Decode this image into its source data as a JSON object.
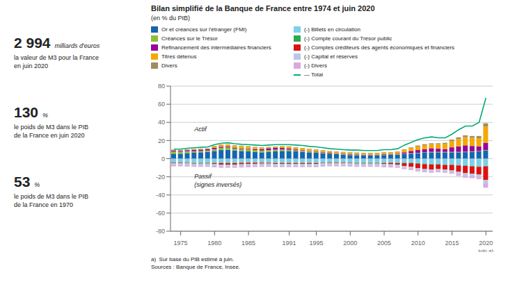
{
  "chart_data": {
    "type": "bar",
    "title": "Bilan simplifié de la Banque de France entre 1974 et juin 2020",
    "subtitle": "(en % du PIB)",
    "stacked": true,
    "grid": true,
    "legend": "top",
    "x": [
      1974,
      1975,
      1976,
      1977,
      1978,
      1979,
      1980,
      1981,
      1982,
      1983,
      1984,
      1985,
      1986,
      1987,
      1988,
      1989,
      1990,
      1991,
      1992,
      1993,
      1994,
      1995,
      1996,
      1997,
      1998,
      1999,
      2000,
      2001,
      2002,
      2003,
      2004,
      2005,
      2006,
      2007,
      2008,
      2009,
      2010,
      2011,
      2012,
      2013,
      2014,
      2015,
      2016,
      2017,
      2018,
      2019,
      2020
    ],
    "xlim": [
      1973.5,
      2021.0
    ],
    "xticks": [
      1975,
      1980,
      1985,
      1991,
      1995,
      2000,
      2005,
      2010,
      2015,
      2020
    ],
    "ylim": [
      -80,
      80
    ],
    "yticks": [
      -80,
      -60,
      -40,
      -20,
      0,
      20,
      40,
      60,
      80
    ],
    "series": [
      {
        "name": "Or et créances sur l'étranger (FMI)",
        "type": "bar",
        "color": "#1565b0",
        "values": [
          5.5,
          5.5,
          6.2,
          6.5,
          7.0,
          7.5,
          8.5,
          9.5,
          9.8,
          9.0,
          8.5,
          8.0,
          7.5,
          7.0,
          7.5,
          8.0,
          8.5,
          8.5,
          8.0,
          7.5,
          7.0,
          6.5,
          6.0,
          5.5,
          5.0,
          4.5,
          4.0,
          3.8,
          3.5,
          3.5,
          3.5,
          4.0,
          4.2,
          4.5,
          5.0,
          5.5,
          6.0,
          6.5,
          7.0,
          7.0,
          7.0,
          7.0,
          7.0,
          7.2,
          7.5,
          8.0,
          9.0
        ]
      },
      {
        "name": "Créances sur le Trésor",
        "type": "bar",
        "color": "#8fbe3a",
        "values": [
          2.5,
          2.2,
          2.0,
          1.8,
          1.5,
          1.5,
          2.0,
          2.5,
          2.5,
          2.2,
          2.0,
          2.0,
          2.0,
          2.0,
          2.0,
          2.0,
          1.8,
          1.5,
          1.2,
          1.0,
          0.8,
          0.8,
          0.8,
          0.5,
          0.5,
          0.5,
          0.5,
          0.5,
          0.5,
          0.5,
          0.5,
          0.5,
          0.5,
          0.5,
          0.5,
          0.5,
          0.5,
          0.5,
          0.5,
          0.5,
          0.5,
          0.5,
          0.5,
          0.5,
          0.5,
          0.5,
          0.5
        ]
      },
      {
        "name": "Refinancement des intermédiaires financiers",
        "type": "bar",
        "color": "#990099",
        "values": [
          1.0,
          1.0,
          1.2,
          1.5,
          1.5,
          1.5,
          1.5,
          1.2,
          1.0,
          1.0,
          0.8,
          0.8,
          1.0,
          1.5,
          2.0,
          2.0,
          1.5,
          1.2,
          1.0,
          0.8,
          0.5,
          0.5,
          0.5,
          0.5,
          0.5,
          0.5,
          0.5,
          0.5,
          0.5,
          0.5,
          0.5,
          0.5,
          0.5,
          0.5,
          1.5,
          2.5,
          3.0,
          3.5,
          4.0,
          3.5,
          3.0,
          5.0,
          6.0,
          7.0,
          6.0,
          5.0,
          8.0
        ]
      },
      {
        "name": "Titres détenus",
        "type": "bar",
        "color": "#f5a800",
        "values": [
          0.5,
          0.5,
          0.5,
          0.5,
          0.5,
          0.5,
          1.5,
          2.0,
          2.0,
          2.0,
          2.5,
          2.5,
          2.0,
          1.5,
          1.0,
          1.0,
          1.5,
          2.0,
          2.0,
          2.0,
          2.0,
          2.0,
          1.5,
          1.5,
          1.5,
          1.5,
          1.5,
          1.5,
          1.5,
          1.5,
          1.5,
          1.5,
          1.5,
          2.0,
          3.0,
          3.5,
          4.0,
          4.5,
          4.5,
          5.0,
          6.0,
          7.0,
          8.0,
          9.0,
          9.0,
          9.0,
          18.0
        ]
      },
      {
        "name": "Divers",
        "type": "bar",
        "color": "#a08c60",
        "values": [
          0.5,
          0.5,
          0.5,
          0.5,
          0.5,
          0.5,
          0.5,
          0.5,
          0.5,
          0.5,
          0.5,
          0.5,
          0.5,
          0.5,
          0.5,
          0.5,
          0.5,
          0.5,
          0.5,
          0.5,
          0.5,
          0.5,
          0.5,
          0.5,
          0.5,
          0.5,
          0.5,
          0.5,
          0.5,
          0.5,
          0.5,
          0.5,
          0.5,
          0.5,
          0.5,
          0.5,
          1.0,
          1.0,
          1.0,
          1.0,
          1.0,
          1.5,
          2.0,
          2.0,
          2.0,
          2.5,
          3.5
        ]
      },
      {
        "name": "(-) Billets en circulation",
        "type": "bar",
        "color": "#7ecfe8",
        "values": [
          -4.0,
          -4.0,
          -4.2,
          -4.5,
          -4.5,
          -4.5,
          -4.5,
          -4.5,
          -4.5,
          -4.5,
          -4.2,
          -4.0,
          -4.0,
          -4.0,
          -4.2,
          -4.5,
          -4.5,
          -4.5,
          -4.5,
          -4.5,
          -4.5,
          -4.5,
          -4.2,
          -4.0,
          -4.0,
          -4.0,
          -4.2,
          -4.5,
          -4.5,
          -4.5,
          -4.5,
          -4.5,
          -4.2,
          -4.5,
          -4.5,
          -4.5,
          -5.0,
          -5.5,
          -6.0,
          -6.0,
          -6.5,
          -6.5,
          -7.0,
          -7.5,
          -8.0,
          -8.5,
          -8.0
        ]
      },
      {
        "name": "(-) Compte courant du Trésor public",
        "type": "bar",
        "color": "#2aaa50",
        "values": [
          -0.5,
          -0.5,
          -0.5,
          -0.5,
          -0.5,
          -0.5,
          -0.5,
          -0.5,
          -0.5,
          -0.5,
          -0.5,
          -0.5,
          -0.5,
          -0.5,
          -0.5,
          -0.5,
          -0.5,
          -0.5,
          -0.5,
          -0.5,
          -0.5,
          -0.5,
          -0.5,
          -0.5,
          -0.5,
          -0.5,
          -0.5,
          -0.5,
          -0.5,
          -0.5,
          -0.5,
          -0.5,
          -0.5,
          -0.5,
          -0.5,
          -0.5,
          -0.5,
          -0.5,
          -0.5,
          -0.5,
          -0.5,
          -0.5,
          -0.5,
          -0.5,
          -0.5,
          -0.5,
          -0.5
        ]
      },
      {
        "name": "(-) Comptes créditeurs des agents économiques et financiers",
        "type": "bar",
        "color": "#dd1111",
        "values": [
          -0.5,
          -0.5,
          -0.5,
          -0.5,
          -0.5,
          -0.5,
          -1.0,
          -1.5,
          -1.5,
          -1.5,
          -1.5,
          -1.5,
          -1.2,
          -1.0,
          -0.8,
          -0.8,
          -0.8,
          -0.8,
          -0.8,
          -0.8,
          -0.8,
          -0.8,
          -0.5,
          -0.5,
          -0.5,
          -0.5,
          -0.5,
          -0.5,
          -0.5,
          -0.5,
          -0.5,
          -1.0,
          -1.5,
          -1.5,
          -3.0,
          -4.0,
          -5.0,
          -5.5,
          -5.5,
          -5.0,
          -5.0,
          -6.0,
          -7.0,
          -8.0,
          -8.0,
          -8.5,
          -15.0
        ]
      },
      {
        "name": "(-) Capital et réserves",
        "type": "bar",
        "color": "#b8c8e8",
        "values": [
          -2.0,
          -2.0,
          -2.0,
          -2.0,
          -2.0,
          -2.0,
          -2.0,
          -2.0,
          -2.0,
          -2.0,
          -2.0,
          -2.0,
          -2.0,
          -2.0,
          -2.0,
          -2.0,
          -2.0,
          -2.0,
          -2.0,
          -2.0,
          -2.0,
          -2.0,
          -2.0,
          -2.0,
          -2.0,
          -2.0,
          -2.0,
          -2.0,
          -2.0,
          -2.0,
          -2.0,
          -2.0,
          -2.0,
          -2.0,
          -2.0,
          -2.0,
          -2.0,
          -2.0,
          -2.0,
          -2.0,
          -2.0,
          -2.0,
          -2.5,
          -3.0,
          -3.0,
          -3.0,
          -3.5
        ]
      },
      {
        "name": "(-) Divers",
        "type": "bar",
        "color": "#d8aadb",
        "values": [
          -1.5,
          -1.5,
          -1.5,
          -1.5,
          -1.5,
          -1.5,
          -1.5,
          -1.5,
          -1.5,
          -1.5,
          -1.5,
          -1.5,
          -1.5,
          -1.5,
          -1.5,
          -1.5,
          -1.5,
          -1.5,
          -1.5,
          -1.5,
          -1.5,
          -1.5,
          -1.5,
          -1.5,
          -1.5,
          -1.5,
          -1.5,
          -1.5,
          -1.5,
          -1.5,
          -1.5,
          -1.5,
          -1.5,
          -1.5,
          -1.5,
          -1.5,
          -1.5,
          -1.5,
          -1.5,
          -1.5,
          -1.5,
          -1.5,
          -2.0,
          -2.0,
          -2.0,
          -2.0,
          -5.0
        ]
      },
      {
        "name": "— Total",
        "type": "line",
        "color": "#00aa77",
        "values": [
          10.5,
          10.5,
          11.5,
          12.0,
          12.5,
          13.0,
          15.5,
          17.0,
          17.5,
          16.5,
          15.8,
          15.5,
          15.0,
          14.5,
          15.0,
          15.5,
          15.5,
          15.5,
          15.0,
          14.5,
          13.5,
          13.0,
          12.0,
          11.0,
          10.5,
          10.0,
          9.5,
          9.5,
          9.0,
          9.0,
          9.0,
          10.0,
          10.0,
          11.0,
          15.0,
          18.0,
          21.0,
          23.0,
          24.0,
          23.0,
          23.0,
          27.0,
          32.0,
          36.0,
          36.0,
          40.0,
          67.0
        ]
      }
    ],
    "annotations": [
      "Actif",
      "Passif\n(signes inversés)",
      "juin a)",
      "a)  Sur base du PIB estimé à juin.",
      "Sources : Banque de France, Insee.",
      "2 994",
      "milliards d'euros",
      "la valeur de M3 pour la France",
      "en juin 2020",
      "130",
      "%",
      "le poids de M3 dans le PIB",
      "de la France en juin 2020",
      "53",
      "%",
      "le poids de M3 dans le PIB",
      "de la France en 1970"
    ]
  }
}
